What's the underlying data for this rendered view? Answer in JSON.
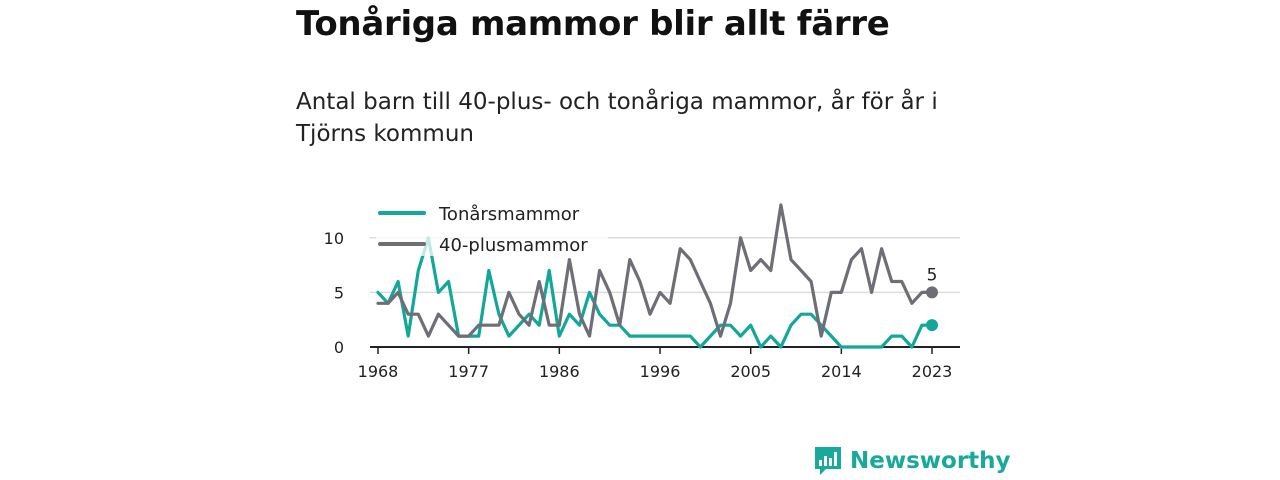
{
  "title": "Tonåriga mammor blir allt färre",
  "subtitle": "Antal barn till 40-plus- och tonåriga mammor, år för år i Tjörns kommun",
  "brand": "Newsworthy",
  "colors": {
    "teal": "#12a79a",
    "gray": "#6e6e76",
    "brand": "#19a89c",
    "axis": "#222222",
    "grid": "#dcdcdc"
  },
  "chart_data": {
    "type": "line",
    "title": "Tonåriga mammor blir allt färre",
    "subtitle": "Antal barn till 40-plus- och tonåriga mammor, år för år i Tjörns kommun",
    "xlabel": "",
    "ylabel": "",
    "xlim": [
      1968,
      2023
    ],
    "ylim": [
      0,
      13
    ],
    "x_ticks": [
      "1968",
      "1977",
      "1986",
      "1996",
      "2005",
      "2014",
      "2023"
    ],
    "y_ticks": [
      "0",
      "5",
      "10"
    ],
    "grid": true,
    "legend": "top-left",
    "x": [
      1968,
      1969,
      1970,
      1971,
      1972,
      1973,
      1974,
      1975,
      1976,
      1977,
      1978,
      1979,
      1980,
      1981,
      1982,
      1983,
      1984,
      1985,
      1986,
      1987,
      1988,
      1989,
      1990,
      1991,
      1992,
      1993,
      1994,
      1995,
      1996,
      1997,
      1998,
      1999,
      2000,
      2001,
      2002,
      2003,
      2004,
      2005,
      2006,
      2007,
      2008,
      2009,
      2010,
      2011,
      2012,
      2013,
      2014,
      2015,
      2016,
      2017,
      2018,
      2019,
      2020,
      2021,
      2022,
      2023
    ],
    "series": [
      {
        "name": "Tonårsmammor",
        "color": "#12a79a",
        "values": [
          5,
          4,
          6,
          1,
          7,
          10,
          5,
          6,
          1,
          1,
          1,
          7,
          3,
          1,
          2,
          3,
          2,
          7,
          1,
          3,
          2,
          5,
          3,
          2,
          2,
          1,
          1,
          1,
          1,
          1,
          1,
          1,
          0,
          1,
          2,
          2,
          1,
          2,
          0,
          1,
          0,
          2,
          3,
          3,
          2,
          1,
          0,
          0,
          0,
          0,
          0,
          1,
          1,
          0,
          2,
          2
        ]
      },
      {
        "name": "40-plusmammor",
        "color": "#6e6e76",
        "values": [
          4,
          4,
          5,
          3,
          3,
          1,
          3,
          2,
          1,
          1,
          2,
          2,
          2,
          5,
          3,
          2,
          6,
          2,
          2,
          8,
          3,
          1,
          7,
          5,
          2,
          8,
          6,
          3,
          5,
          4,
          9,
          8,
          6,
          4,
          1,
          4,
          10,
          7,
          8,
          7,
          13,
          8,
          7,
          6,
          1,
          5,
          5,
          8,
          9,
          5,
          9,
          6,
          6,
          4,
          5,
          5
        ]
      }
    ],
    "annotations": [
      {
        "series": "40-plusmammor",
        "x": 2023,
        "label": "5"
      }
    ]
  }
}
